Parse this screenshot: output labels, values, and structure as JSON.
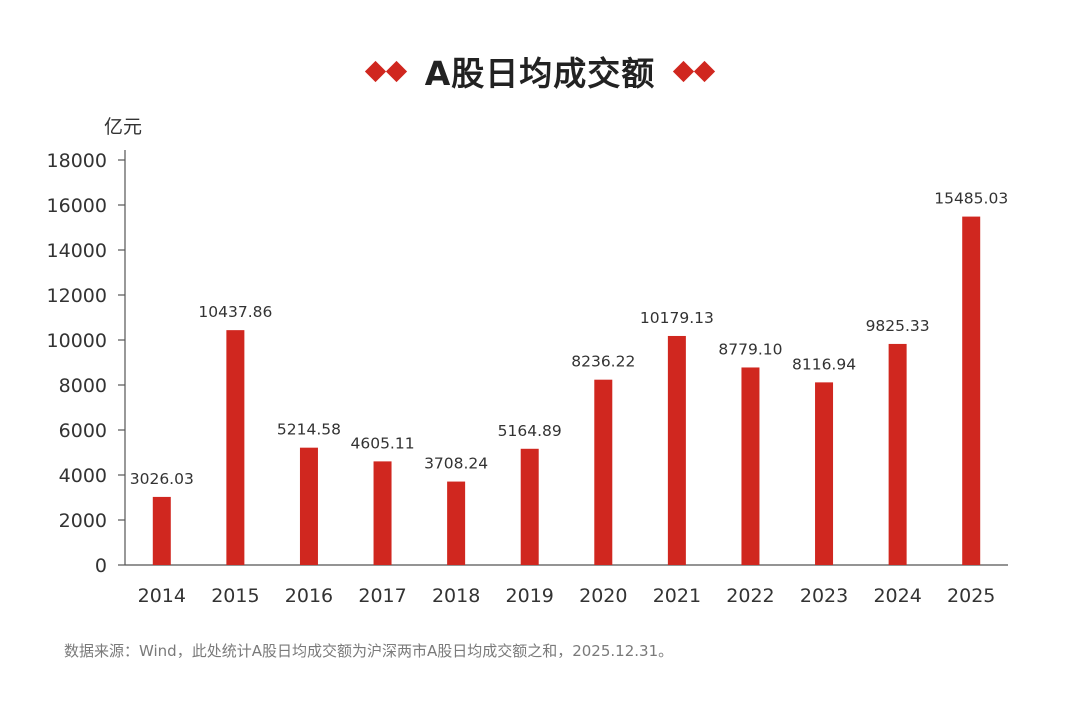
{
  "header": {
    "title": "A股日均成交额"
  },
  "chart_data": {
    "type": "bar",
    "title": "A股日均成交额",
    "ylabel": "亿元",
    "xlabel": "",
    "categories": [
      "2014",
      "2015",
      "2016",
      "2017",
      "2018",
      "2019",
      "2020",
      "2021",
      "2022",
      "2023",
      "2024",
      "2025"
    ],
    "values": [
      3026.03,
      10437.86,
      5214.58,
      4605.11,
      3708.24,
      5164.89,
      8236.22,
      10179.13,
      8779.1,
      8116.94,
      9825.33,
      15485.03
    ],
    "value_labels": [
      "3026.03",
      "10437.86",
      "5214.58",
      "4605.11",
      "3708.24",
      "5164.89",
      "8236.22",
      "10179.13",
      "8779.10",
      "8116.94",
      "9825.33",
      "15485.03"
    ],
    "ylim": [
      0,
      18000
    ],
    "yticks": [
      0,
      2000,
      4000,
      6000,
      8000,
      10000,
      12000,
      14000,
      16000,
      18000
    ],
    "grid": false,
    "bar_color": "#d0271f"
  },
  "footnote": {
    "text": "数据来源：Wind，此处统计A股日均成交额为沪深两市A股日均成交额之和，2025.12.31。"
  }
}
